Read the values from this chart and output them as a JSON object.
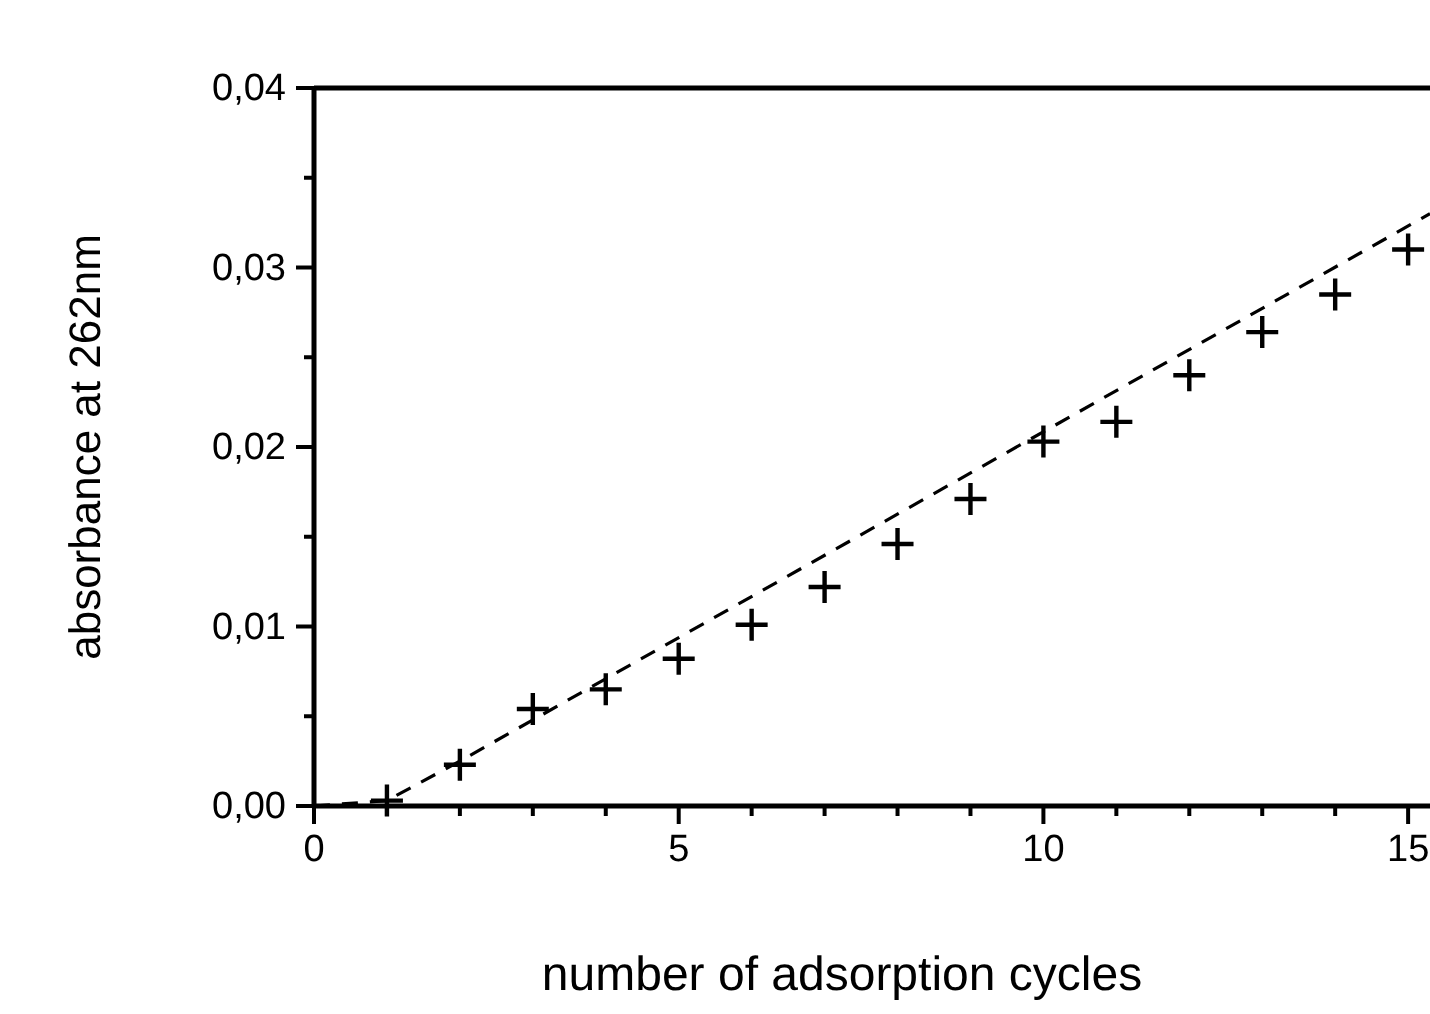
{
  "chart_data": {
    "type": "scatter",
    "xlabel": "number of adsorption cycles",
    "ylabel": "absorbance at 262nm",
    "xlim": [
      0,
      15.3
    ],
    "ylim": [
      0,
      0.04
    ],
    "xticks": [
      0,
      {
        "value": 1,
        "label": null
      },
      {
        "value": 2,
        "label": null
      },
      {
        "value": 3,
        "label": null
      },
      {
        "value": 4,
        "label": null
      },
      5,
      {
        "value": 6,
        "label": null
      },
      {
        "value": 7,
        "label": null
      },
      {
        "value": 8,
        "label": null
      },
      {
        "value": 9,
        "label": null
      },
      10,
      {
        "value": 11,
        "label": null
      },
      {
        "value": 12,
        "label": null
      },
      {
        "value": 13,
        "label": null
      },
      {
        "value": 14,
        "label": null
      },
      15
    ],
    "yticks": [
      {
        "value": 0,
        "label": "0,00"
      },
      {
        "value": 0.005,
        "label": null
      },
      {
        "value": 0.01,
        "label": "0,01"
      },
      {
        "value": 0.015,
        "label": null
      },
      {
        "value": 0.02,
        "label": "0,02"
      },
      {
        "value": 0.025,
        "label": null
      },
      {
        "value": 0.03,
        "label": "0,03"
      },
      {
        "value": 0.035,
        "label": null
      },
      {
        "value": 0.04,
        "label": "0,04"
      }
    ],
    "series": [
      {
        "color": "#000000",
        "marker": "cross",
        "x": [
          1,
          2,
          3,
          4,
          5,
          6,
          7,
          8,
          9,
          10,
          11,
          12,
          13,
          14,
          15
        ],
        "values": [
          0.0003,
          0.0023,
          0.0054,
          0.0065,
          0.0082,
          0.0101,
          0.0122,
          0.0146,
          0.0171,
          0.0203,
          0.0214,
          0.024,
          0.0264,
          0.0285,
          0.031
        ]
      },
      {
        "type": "line",
        "color": "#000000",
        "line_style": "dashed",
        "marker": "none",
        "x": [
          0,
          1,
          2,
          15.3
        ],
        "values": [
          0,
          0.0003,
          0.0025,
          0.033
        ]
      }
    ]
  }
}
